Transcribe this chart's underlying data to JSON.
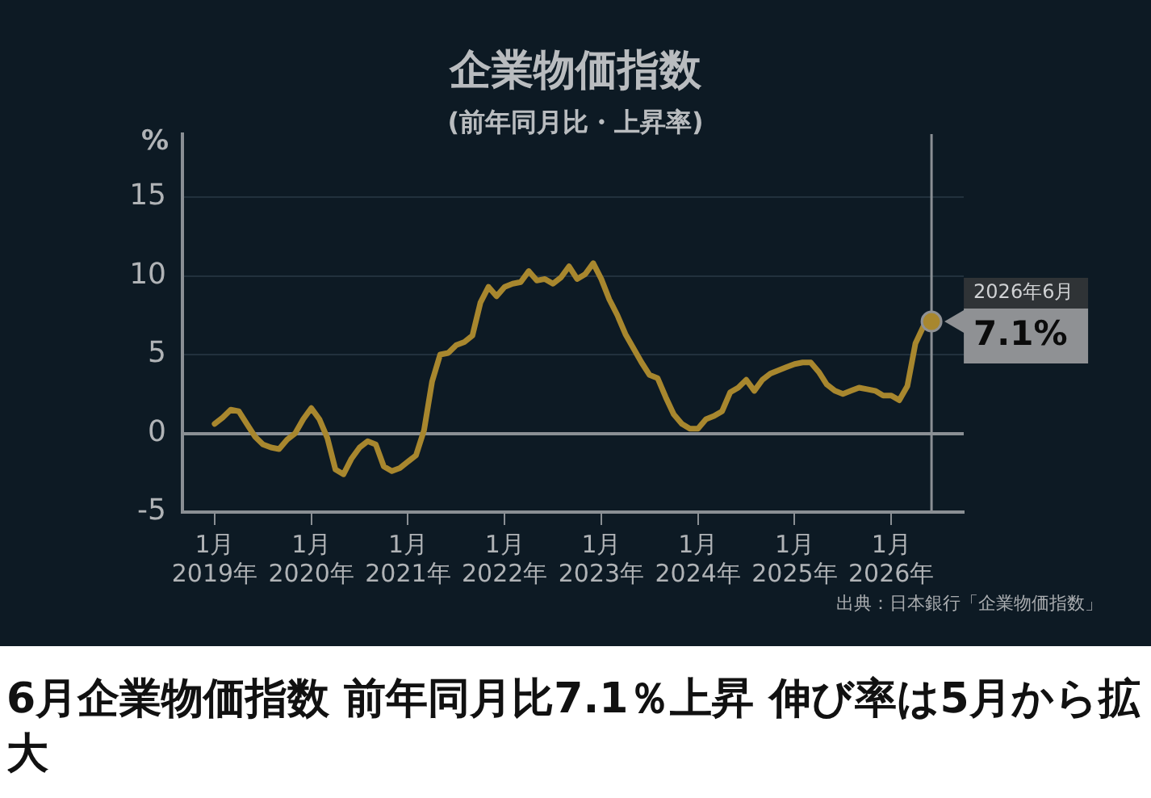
{
  "chart_data": {
    "type": "line",
    "title": "企業物価指数",
    "subtitle": "(前年同月比・上昇率)",
    "ylabel": "%",
    "x": [
      "2019-01",
      "2019-02",
      "2019-03",
      "2019-04",
      "2019-05",
      "2019-06",
      "2019-07",
      "2019-08",
      "2019-09",
      "2019-10",
      "2019-11",
      "2019-12",
      "2020-01",
      "2020-02",
      "2020-03",
      "2020-04",
      "2020-05",
      "2020-06",
      "2020-07",
      "2020-08",
      "2020-09",
      "2020-10",
      "2020-11",
      "2020-12",
      "2021-01",
      "2021-02",
      "2021-03",
      "2021-04",
      "2021-05",
      "2021-06",
      "2021-07",
      "2021-08",
      "2021-09",
      "2021-10",
      "2021-11",
      "2021-12",
      "2022-01",
      "2022-02",
      "2022-03",
      "2022-04",
      "2022-05",
      "2022-06",
      "2022-07",
      "2022-08",
      "2022-09",
      "2022-10",
      "2022-11",
      "2022-12",
      "2023-01",
      "2023-02",
      "2023-03",
      "2023-04",
      "2023-05",
      "2023-06",
      "2023-07",
      "2023-08",
      "2023-09",
      "2023-10",
      "2023-11",
      "2023-12",
      "2024-01",
      "2024-02",
      "2024-03",
      "2024-04",
      "2024-05",
      "2024-06",
      "2024-07",
      "2024-08",
      "2024-09",
      "2024-10",
      "2024-11",
      "2024-12",
      "2025-01",
      "2025-02",
      "2025-03",
      "2025-04",
      "2025-05",
      "2025-06",
      "2025-07",
      "2025-08",
      "2025-09",
      "2025-10",
      "2025-11",
      "2025-12",
      "2026-01",
      "2026-02",
      "2026-03",
      "2026-04",
      "2026-05",
      "2026-06"
    ],
    "series": [
      {
        "color": "#a8872e",
        "values": [
          0.6,
          1.0,
          1.5,
          1.4,
          0.6,
          -0.2,
          -0.7,
          -0.9,
          -1.0,
          -0.4,
          0.0,
          0.9,
          1.6,
          0.9,
          -0.3,
          -2.3,
          -2.6,
          -1.6,
          -0.9,
          -0.5,
          -0.7,
          -2.1,
          -2.4,
          -2.2,
          -1.8,
          -1.4,
          0.2,
          3.3,
          5.0,
          5.1,
          5.6,
          5.8,
          6.2,
          8.3,
          9.3,
          8.7,
          9.3,
          9.5,
          9.6,
          10.3,
          9.7,
          9.8,
          9.5,
          9.9,
          10.6,
          9.8,
          10.1,
          10.8,
          9.8,
          8.5,
          7.5,
          6.3,
          5.4,
          4.5,
          3.7,
          3.5,
          2.3,
          1.2,
          0.6,
          0.3,
          0.3,
          0.9,
          1.1,
          1.4,
          2.6,
          2.9,
          3.4,
          2.7,
          3.4,
          3.8,
          4.0,
          4.2,
          4.4,
          4.5,
          4.5,
          3.9,
          3.1,
          2.7,
          2.5,
          2.7,
          2.9,
          2.8,
          2.7,
          2.4,
          2.4,
          2.1,
          3.0,
          5.7,
          6.8,
          7.1
        ]
      }
    ],
    "xlim": [
      "2018-09",
      "2026-10"
    ],
    "xticks": [
      {
        "value": "2019-01",
        "label": "1月 2019年"
      },
      {
        "value": "2020-01",
        "label": "1月 2020年"
      },
      {
        "value": "2021-01",
        "label": "1月 2021年"
      },
      {
        "value": "2022-01",
        "label": "1月 2022年"
      },
      {
        "value": "2023-01",
        "label": "1月 2023年"
      },
      {
        "value": "2024-01",
        "label": "1月 2024年"
      },
      {
        "value": "2025-01",
        "label": "1月 2025年"
      },
      {
        "value": "2026-01",
        "label": "1月 2026年"
      }
    ],
    "ylim": [
      -5,
      19
    ],
    "yticks": [
      -5,
      0,
      5,
      10,
      15
    ],
    "grid": "y",
    "legend": false,
    "ref_lines": [
      {
        "axis": "x",
        "value": "2026-06",
        "color": "#8a8f94"
      }
    ],
    "annotations": [
      {
        "text": "2026年6月",
        "x": "2026-06",
        "y": 7.1
      },
      {
        "text": "7.1%",
        "x": "2026-06",
        "y": 7.1
      },
      "出典：日本銀行「企業物価指数」",
      "6月企業物価指数 前年同月比7.1％上昇 伸び率は5月から拡大"
    ]
  }
}
